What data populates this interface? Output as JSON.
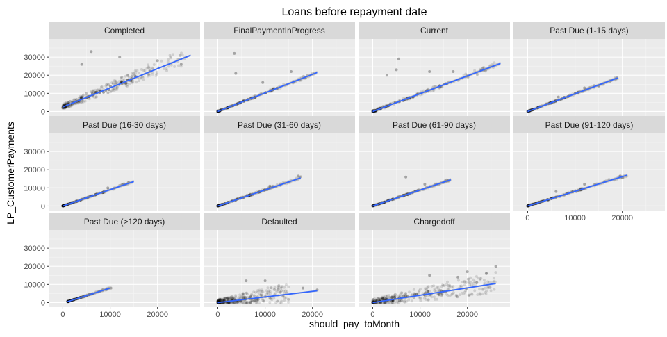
{
  "chart_data": {
    "type": "scatter",
    "title": "Loans before repayment date",
    "xlabel": "should_pay_toMonth",
    "ylabel": "LP_CustomerPayments",
    "xlim": [
      -3000,
      29000
    ],
    "ylim": [
      -2500,
      40000
    ],
    "x_ticks": [
      0,
      10000,
      20000
    ],
    "y_ticks": [
      0,
      10000,
      20000,
      30000
    ],
    "grid": true,
    "facet_layout": {
      "ncol": 4,
      "nrow": 3
    },
    "colors": {
      "panel_bg": "#ebebeb",
      "grid_major": "#ffffff",
      "strip_bg": "#d9d9d9",
      "point": "#000000",
      "fit_line": "#3366ff",
      "ribbon": "#999999"
    },
    "series": [
      {
        "name": "Completed",
        "fit": [
          [
            0,
            2500
          ],
          [
            27000,
            31000
          ]
        ],
        "scatter": {
          "x": [
            0,
            26000
          ],
          "y_low": 0,
          "spread": 7000,
          "outliers": [
            [
              6000,
              33000
            ],
            [
              12000,
              30000
            ],
            [
              4000,
              26000
            ],
            [
              20000,
              28000
            ],
            [
              25000,
              26000
            ]
          ]
        }
      },
      {
        "name": "FinalPaymentInProgress",
        "fit": [
          [
            0,
            0
          ],
          [
            21000,
            21500
          ]
        ],
        "scatter": {
          "x": [
            0,
            21000
          ],
          "y_low": 0,
          "spread": 1500,
          "outliers": [
            [
              3500,
              32000
            ],
            [
              3800,
              21000
            ],
            [
              9500,
              16000
            ],
            [
              15500,
              22000
            ]
          ]
        }
      },
      {
        "name": "Current",
        "fit": [
          [
            0,
            0
          ],
          [
            27000,
            26500
          ]
        ],
        "scatter": {
          "x": [
            0,
            27000
          ],
          "y_low": 0,
          "spread": 2500,
          "outliers": [
            [
              5500,
              29000
            ],
            [
              5000,
              23000
            ],
            [
              3000,
              20000
            ],
            [
              12000,
              22000
            ],
            [
              17000,
              22000
            ]
          ]
        }
      },
      {
        "name": "Past Due (1-15 days)",
        "fit": [
          [
            0,
            0
          ],
          [
            19000,
            18500
          ]
        ],
        "scatter": {
          "x": [
            0,
            19000
          ],
          "y_low": 0,
          "spread": 1200,
          "outliers": [
            [
              6500,
              8000
            ],
            [
              12000,
              13000
            ],
            [
              15000,
              14000
            ]
          ]
        }
      },
      {
        "name": "Past Due (16-30 days)",
        "fit": [
          [
            0,
            0
          ],
          [
            15000,
            13500
          ]
        ],
        "scatter": {
          "x": [
            0,
            14500
          ],
          "y_low": 0,
          "spread": 1000,
          "outliers": [
            [
              9500,
              10000
            ]
          ]
        }
      },
      {
        "name": "Past Due (31-60 days)",
        "fit": [
          [
            0,
            0
          ],
          [
            17500,
            15500
          ]
        ],
        "scatter": {
          "x": [
            0,
            18000
          ],
          "y_low": 0,
          "spread": 1200,
          "outliers": [
            [
              17000,
              16500
            ],
            [
              11000,
              11000
            ]
          ]
        }
      },
      {
        "name": "Past Due (61-90 days)",
        "fit": [
          [
            0,
            0
          ],
          [
            16500,
            14500
          ]
        ],
        "scatter": {
          "x": [
            0,
            16500
          ],
          "y_low": 0,
          "spread": 1000,
          "outliers": [
            [
              7000,
              16000
            ],
            [
              11000,
              12000
            ]
          ]
        }
      },
      {
        "name": "Past Due (91-120 days)",
        "fit": [
          [
            0,
            0
          ],
          [
            21000,
            17000
          ]
        ],
        "scatter": {
          "x": [
            0,
            21000
          ],
          "y_low": 0,
          "spread": 1200,
          "outliers": [
            [
              12000,
              12000
            ],
            [
              6000,
              8000
            ]
          ]
        }
      },
      {
        "name": "Past Due (>120 days)",
        "fit": [
          [
            1000,
            500
          ],
          [
            10000,
            8000
          ]
        ],
        "scatter": {
          "x": [
            1000,
            10500
          ],
          "y_low": 0,
          "spread": 800,
          "outliers": []
        }
      },
      {
        "name": "Defaulted",
        "fit": [
          [
            0,
            0
          ],
          [
            21000,
            6500
          ]
        ],
        "scatter": {
          "x": [
            0,
            15000
          ],
          "y_low": 0,
          "spread": 8000,
          "outliers": [
            [
              6000,
              12000
            ],
            [
              10000,
              12000
            ],
            [
              18000,
              8000
            ],
            [
              21000,
              7000
            ]
          ]
        }
      },
      {
        "name": "Chargedoff",
        "fit": [
          [
            0,
            0
          ],
          [
            26000,
            10500
          ]
        ],
        "scatter": {
          "x": [
            0,
            26000
          ],
          "y_low": 0,
          "spread": 9000,
          "outliers": [
            [
              12000,
              15000
            ],
            [
              18000,
              14000
            ],
            [
              20000,
              17000
            ],
            [
              24000,
              16000
            ],
            [
              26000,
              20000
            ],
            [
              22000,
              11000
            ]
          ]
        }
      }
    ]
  }
}
